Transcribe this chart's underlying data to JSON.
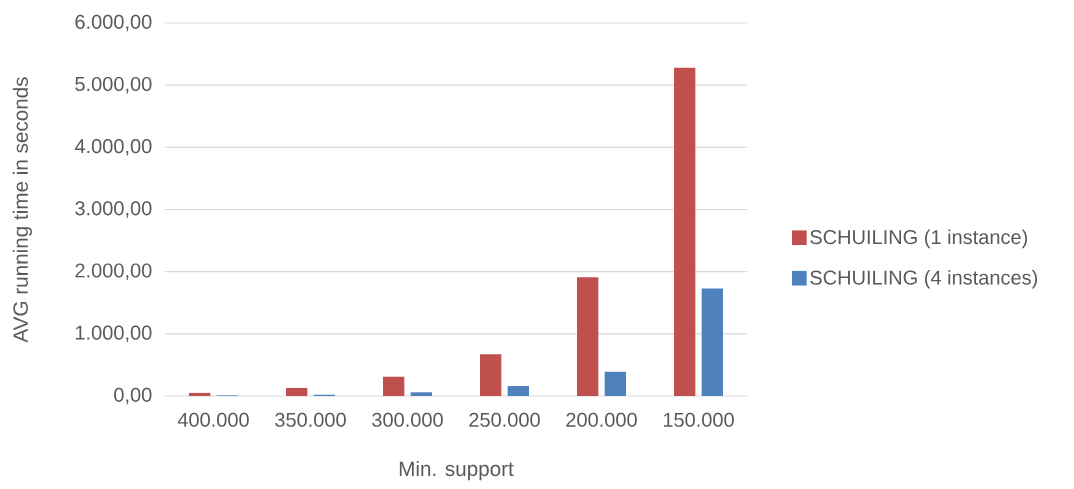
{
  "chart_data": {
    "type": "bar",
    "ylabel": "AVG running time in seconds",
    "xlabel": "Min. support",
    "categories": [
      "400.000",
      "350.000",
      "300.000",
      "250.000",
      "200.000",
      "150.000"
    ],
    "series": [
      {
        "name": "SCHUILING (1 instance)",
        "color": "#c0504d",
        "values": [
          50,
          130,
          310,
          670,
          1910,
          5280
        ]
      },
      {
        "name": "SCHUILING (4 instances)",
        "color": "#4f81bd",
        "values": [
          10,
          20,
          60,
          160,
          390,
          1730
        ]
      }
    ],
    "ylim": [
      0,
      6000
    ],
    "yticks": [
      {
        "value": 0,
        "label": "0,00"
      },
      {
        "value": 1000,
        "label": "1.000,00"
      },
      {
        "value": 2000,
        "label": "2.000,00"
      },
      {
        "value": 3000,
        "label": "3.000,00"
      },
      {
        "value": 4000,
        "label": "4.000,00"
      },
      {
        "value": 5000,
        "label": "5.000,00"
      },
      {
        "value": 6000,
        "label": "6.000,00"
      }
    ],
    "grid": "y",
    "legend": "right"
  }
}
